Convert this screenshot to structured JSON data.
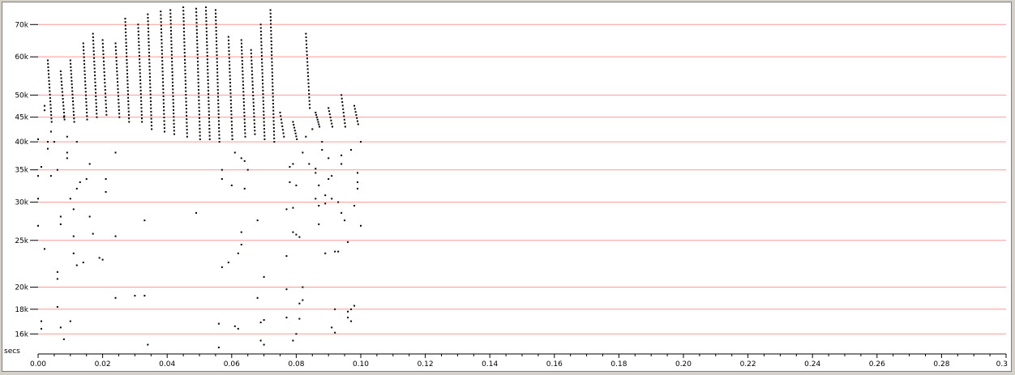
{
  "chart_data": {
    "type": "scatter",
    "title": "",
    "xlabel": "secs",
    "ylabel": "",
    "xlim": [
      0,
      0.3
    ],
    "ylim": [
      15000,
      76000
    ],
    "y_scale": "log",
    "grid": "horizontal",
    "colors": {
      "grid": "#ff9999",
      "points": "#000000",
      "axis": "#000000"
    },
    "y_ticks": [
      16000,
      18000,
      20000,
      25000,
      30000,
      35000,
      40000,
      45000,
      50000,
      60000,
      70000
    ],
    "y_tick_labels": [
      "16k",
      "18k",
      "20k",
      "25k",
      "30k",
      "35k",
      "40k",
      "45k",
      "50k",
      "60k",
      "70k"
    ],
    "x_ticks": [
      0,
      0.02,
      0.04,
      0.06,
      0.08,
      0.1,
      0.12,
      0.14,
      0.16,
      0.18,
      0.2,
      0.22,
      0.24,
      0.26,
      0.28,
      0.3
    ],
    "x_tick_labels": [
      "0.00",
      "0.02",
      "0.04",
      "0.06",
      "0.08",
      "0.10",
      "0.12",
      "0.14",
      "0.16",
      "0.18",
      "0.20",
      "0.22",
      "0.24",
      "0.26",
      "0.28",
      "0.3"
    ],
    "sweeps": [
      {
        "x": 0.003,
        "y_top": 59000,
        "y_bottom": 44000
      },
      {
        "x": 0.007,
        "y_top": 56000,
        "y_bottom": 44500
      },
      {
        "x": 0.01,
        "y_top": 59000,
        "y_bottom": 44000
      },
      {
        "x": 0.014,
        "y_top": 64000,
        "y_bottom": 44500
      },
      {
        "x": 0.017,
        "y_top": 67000,
        "y_bottom": 45000
      },
      {
        "x": 0.02,
        "y_top": 65000,
        "y_bottom": 45500
      },
      {
        "x": 0.024,
        "y_top": 64000,
        "y_bottom": 45000
      },
      {
        "x": 0.027,
        "y_top": 72000,
        "y_bottom": 44000
      },
      {
        "x": 0.031,
        "y_top": 70000,
        "y_bottom": 44000
      },
      {
        "x": 0.034,
        "y_top": 73500,
        "y_bottom": 42500
      },
      {
        "x": 0.038,
        "y_top": 74500,
        "y_bottom": 42000
      },
      {
        "x": 0.041,
        "y_top": 75000,
        "y_bottom": 41500
      },
      {
        "x": 0.045,
        "y_top": 76000,
        "y_bottom": 41000
      },
      {
        "x": 0.049,
        "y_top": 75500,
        "y_bottom": 40500
      },
      {
        "x": 0.052,
        "y_top": 76000,
        "y_bottom": 40500
      },
      {
        "x": 0.055,
        "y_top": 75000,
        "y_bottom": 40000
      },
      {
        "x": 0.059,
        "y_top": 66000,
        "y_bottom": 40500
      },
      {
        "x": 0.063,
        "y_top": 65000,
        "y_bottom": 41000
      },
      {
        "x": 0.066,
        "y_top": 62000,
        "y_bottom": 41500
      },
      {
        "x": 0.069,
        "y_top": 70000,
        "y_bottom": 40500
      },
      {
        "x": 0.072,
        "y_top": 75000,
        "y_bottom": 40000
      },
      {
        "x": 0.075,
        "y_top": 46000,
        "y_bottom": 41000
      },
      {
        "x": 0.079,
        "y_top": 44000,
        "y_bottom": 40500
      },
      {
        "x": 0.083,
        "y_top": 67000,
        "y_bottom": 47000
      },
      {
        "x": 0.086,
        "y_top": 46000,
        "y_bottom": 43000
      },
      {
        "x": 0.09,
        "y_top": 47000,
        "y_bottom": 43000
      },
      {
        "x": 0.094,
        "y_top": 50000,
        "y_bottom": 43000
      },
      {
        "x": 0.098,
        "y_top": 47500,
        "y_bottom": 43500
      }
    ],
    "scattered_points": [
      {
        "x": 0.0,
        "y": 40500
      },
      {
        "x": 0.0,
        "y": 34000
      },
      {
        "x": 0.0,
        "y": 30500
      },
      {
        "x": 0.0,
        "y": 26800
      },
      {
        "x": 0.001,
        "y": 17000
      },
      {
        "x": 0.001,
        "y": 16400
      },
      {
        "x": 0.001,
        "y": 35500
      },
      {
        "x": 0.002,
        "y": 24000
      },
      {
        "x": 0.002,
        "y": 47500
      },
      {
        "x": 0.002,
        "y": 46500
      },
      {
        "x": 0.003,
        "y": 40000
      },
      {
        "x": 0.003,
        "y": 38700
      },
      {
        "x": 0.004,
        "y": 34000
      },
      {
        "x": 0.004,
        "y": 42000
      },
      {
        "x": 0.005,
        "y": 40000
      },
      {
        "x": 0.006,
        "y": 35000
      },
      {
        "x": 0.006,
        "y": 21500
      },
      {
        "x": 0.006,
        "y": 20800
      },
      {
        "x": 0.006,
        "y": 18200
      },
      {
        "x": 0.007,
        "y": 27000
      },
      {
        "x": 0.007,
        "y": 16500
      },
      {
        "x": 0.007,
        "y": 28000
      },
      {
        "x": 0.008,
        "y": 15600
      },
      {
        "x": 0.008,
        "y": 45000
      },
      {
        "x": 0.009,
        "y": 41000
      },
      {
        "x": 0.009,
        "y": 38000
      },
      {
        "x": 0.009,
        "y": 37000
      },
      {
        "x": 0.01,
        "y": 17000
      },
      {
        "x": 0.01,
        "y": 30500
      },
      {
        "x": 0.011,
        "y": 25500
      },
      {
        "x": 0.011,
        "y": 23500
      },
      {
        "x": 0.011,
        "y": 29000
      },
      {
        "x": 0.012,
        "y": 22200
      },
      {
        "x": 0.012,
        "y": 32000
      },
      {
        "x": 0.012,
        "y": 40000
      },
      {
        "x": 0.013,
        "y": 33000
      },
      {
        "x": 0.014,
        "y": 22500
      },
      {
        "x": 0.015,
        "y": 33500
      },
      {
        "x": 0.016,
        "y": 28000
      },
      {
        "x": 0.016,
        "y": 36000
      },
      {
        "x": 0.017,
        "y": 25800
      },
      {
        "x": 0.019,
        "y": 23000
      },
      {
        "x": 0.02,
        "y": 22800
      },
      {
        "x": 0.021,
        "y": 33500
      },
      {
        "x": 0.021,
        "y": 31500
      },
      {
        "x": 0.024,
        "y": 38000
      },
      {
        "x": 0.024,
        "y": 25500
      },
      {
        "x": 0.024,
        "y": 19000
      },
      {
        "x": 0.03,
        "y": 19200
      },
      {
        "x": 0.033,
        "y": 19200
      },
      {
        "x": 0.033,
        "y": 27500
      },
      {
        "x": 0.034,
        "y": 15200
      },
      {
        "x": 0.049,
        "y": 28500
      },
      {
        "x": 0.056,
        "y": 16800
      },
      {
        "x": 0.056,
        "y": 15000
      },
      {
        "x": 0.057,
        "y": 22000
      },
      {
        "x": 0.057,
        "y": 33500
      },
      {
        "x": 0.057,
        "y": 35000
      },
      {
        "x": 0.059,
        "y": 22500
      },
      {
        "x": 0.06,
        "y": 32500
      },
      {
        "x": 0.061,
        "y": 16600
      },
      {
        "x": 0.061,
        "y": 38000
      },
      {
        "x": 0.062,
        "y": 23500
      },
      {
        "x": 0.062,
        "y": 16400
      },
      {
        "x": 0.063,
        "y": 26000
      },
      {
        "x": 0.063,
        "y": 24500
      },
      {
        "x": 0.063,
        "y": 37000
      },
      {
        "x": 0.064,
        "y": 32000
      },
      {
        "x": 0.064,
        "y": 36500
      },
      {
        "x": 0.065,
        "y": 35000
      },
      {
        "x": 0.068,
        "y": 27500
      },
      {
        "x": 0.068,
        "y": 19000
      },
      {
        "x": 0.069,
        "y": 16900
      },
      {
        "x": 0.069,
        "y": 15500
      },
      {
        "x": 0.07,
        "y": 17100
      },
      {
        "x": 0.07,
        "y": 21000
      },
      {
        "x": 0.07,
        "y": 15200
      },
      {
        "x": 0.077,
        "y": 23200
      },
      {
        "x": 0.077,
        "y": 19800
      },
      {
        "x": 0.077,
        "y": 17300
      },
      {
        "x": 0.077,
        "y": 29000
      },
      {
        "x": 0.078,
        "y": 33000
      },
      {
        "x": 0.078,
        "y": 35500
      },
      {
        "x": 0.079,
        "y": 15500
      },
      {
        "x": 0.079,
        "y": 29200
      },
      {
        "x": 0.079,
        "y": 26000
      },
      {
        "x": 0.079,
        "y": 36000
      },
      {
        "x": 0.08,
        "y": 25700
      },
      {
        "x": 0.08,
        "y": 32500
      },
      {
        "x": 0.08,
        "y": 16000
      },
      {
        "x": 0.081,
        "y": 17200
      },
      {
        "x": 0.081,
        "y": 18500
      },
      {
        "x": 0.081,
        "y": 25400
      },
      {
        "x": 0.082,
        "y": 20000
      },
      {
        "x": 0.082,
        "y": 18800
      },
      {
        "x": 0.082,
        "y": 38000
      },
      {
        "x": 0.083,
        "y": 41000
      },
      {
        "x": 0.084,
        "y": 36000
      },
      {
        "x": 0.085,
        "y": 42500
      },
      {
        "x": 0.086,
        "y": 30500
      },
      {
        "x": 0.086,
        "y": 34500
      },
      {
        "x": 0.086,
        "y": 35200
      },
      {
        "x": 0.087,
        "y": 27000
      },
      {
        "x": 0.087,
        "y": 29500
      },
      {
        "x": 0.087,
        "y": 32500
      },
      {
        "x": 0.088,
        "y": 40000
      },
      {
        "x": 0.088,
        "y": 38500
      },
      {
        "x": 0.089,
        "y": 23500
      },
      {
        "x": 0.089,
        "y": 29800
      },
      {
        "x": 0.089,
        "y": 31000
      },
      {
        "x": 0.09,
        "y": 33500
      },
      {
        "x": 0.09,
        "y": 37000
      },
      {
        "x": 0.091,
        "y": 30500
      },
      {
        "x": 0.091,
        "y": 34000
      },
      {
        "x": 0.091,
        "y": 16500
      },
      {
        "x": 0.092,
        "y": 18000
      },
      {
        "x": 0.092,
        "y": 23700
      },
      {
        "x": 0.092,
        "y": 16100
      },
      {
        "x": 0.093,
        "y": 23700
      },
      {
        "x": 0.093,
        "y": 30000
      },
      {
        "x": 0.094,
        "y": 28500
      },
      {
        "x": 0.094,
        "y": 36000
      },
      {
        "x": 0.094,
        "y": 37500
      },
      {
        "x": 0.095,
        "y": 27500
      },
      {
        "x": 0.096,
        "y": 24800
      },
      {
        "x": 0.096,
        "y": 17800
      },
      {
        "x": 0.096,
        "y": 17300
      },
      {
        "x": 0.097,
        "y": 17000
      },
      {
        "x": 0.097,
        "y": 18000
      },
      {
        "x": 0.097,
        "y": 38500
      },
      {
        "x": 0.098,
        "y": 18300
      },
      {
        "x": 0.098,
        "y": 29500
      },
      {
        "x": 0.099,
        "y": 33000
      },
      {
        "x": 0.099,
        "y": 32000
      },
      {
        "x": 0.099,
        "y": 34500
      },
      {
        "x": 0.1,
        "y": 40000
      },
      {
        "x": 0.1,
        "y": 26800
      }
    ]
  }
}
